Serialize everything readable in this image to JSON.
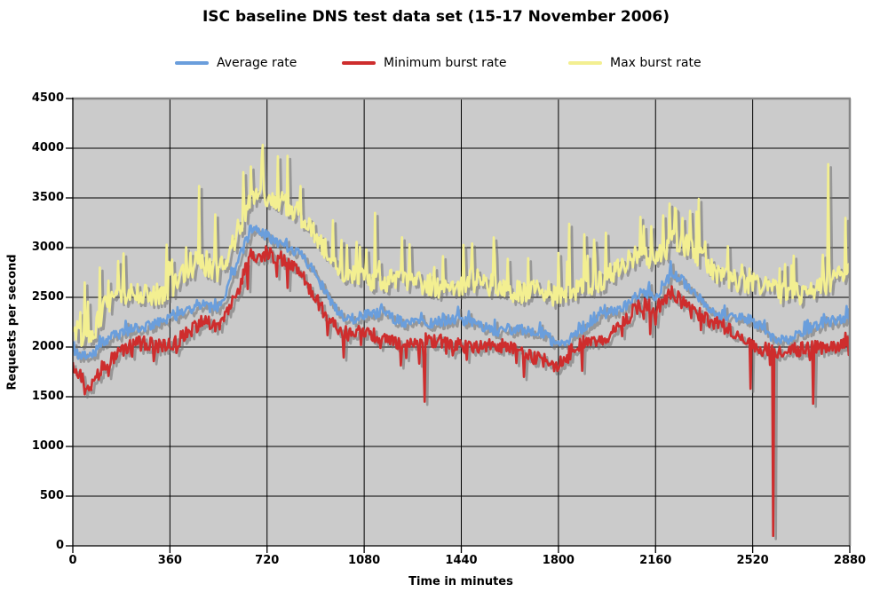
{
  "chart_data": {
    "type": "line",
    "title": "ISC baseline DNS test data set (15-17 November 2006)",
    "xlabel": "Time in minutes",
    "ylabel": "Requests per second",
    "xlim": [
      0,
      2880
    ],
    "ylim": [
      0,
      4500
    ],
    "x_ticks": [
      0,
      360,
      720,
      1080,
      1440,
      1800,
      2160,
      2520,
      2880
    ],
    "y_ticks": [
      0,
      500,
      1000,
      1500,
      2000,
      2500,
      3000,
      3500,
      4000,
      4500
    ],
    "grid": true,
    "legend_position": "top",
    "plot_bg_color": "#CBCBCB",
    "grid_color": "#000000",
    "axis_color": "#000000",
    "border_color": "#868686",
    "shadow_color": "rgba(110,110,110,0.55)",
    "sample_step_minutes": 60,
    "series": [
      {
        "name": "Average rate",
        "color": "#6A9EDC",
        "noise_amplitude": 55,
        "trend": [
          1950,
          1850,
          2050,
          2150,
          2200,
          2200,
          2250,
          2350,
          2450,
          2400,
          2750,
          3200,
          3150,
          3050,
          2950,
          2700,
          2450,
          2300,
          2300,
          2300,
          2250,
          2250,
          2250,
          2250,
          2250,
          2250,
          2200,
          2200,
          2150,
          2150,
          2050,
          2150,
          2250,
          2300,
          2400,
          2550,
          2500,
          2700,
          2600,
          2450,
          2350,
          2300,
          2250,
          2150,
          2100,
          2150,
          2200,
          2250,
          2300
        ]
      },
      {
        "name": "Minimum burst rate",
        "color": "#CE2D2D",
        "noise_amplitude": 75,
        "trend": [
          1750,
          1600,
          1850,
          1950,
          2000,
          2000,
          2050,
          2150,
          2250,
          2200,
          2550,
          2950,
          2950,
          2850,
          2750,
          2500,
          2250,
          2100,
          2100,
          2100,
          2050,
          2050,
          2050,
          2050,
          2050,
          2050,
          2000,
          2000,
          1950,
          1900,
          1800,
          1950,
          2050,
          2100,
          2250,
          2400,
          2350,
          2550,
          2450,
          2300,
          2200,
          2150,
          2050,
          2000,
          1950,
          1950,
          2000,
          2000,
          2100
        ],
        "anomaly_dips": [
          [
            1303,
            1450
          ],
          [
            2511,
            1580
          ],
          [
            2594,
            100
          ],
          [
            2742,
            1430
          ]
        ]
      },
      {
        "name": "Max burst rate",
        "color": "#F3EF91",
        "noise_amplitude": 115,
        "trend": [
          2200,
          2050,
          2400,
          2500,
          2550,
          2550,
          2600,
          2750,
          2850,
          2800,
          3100,
          3500,
          3500,
          3450,
          3350,
          3100,
          2850,
          2700,
          2700,
          2700,
          2650,
          2650,
          2650,
          2650,
          2650,
          2650,
          2600,
          2600,
          2550,
          2550,
          2450,
          2550,
          2650,
          2700,
          2800,
          2950,
          2900,
          3100,
          3000,
          2850,
          2750,
          2700,
          2650,
          2550,
          2500,
          2550,
          2600,
          2650,
          2750
        ],
        "notable_spikes": [
          [
            100,
            2800
          ],
          [
            468,
            3620
          ],
          [
            630,
            3760
          ],
          [
            758,
            3920
          ],
          [
            842,
            3620
          ],
          [
            1118,
            3350
          ],
          [
            1840,
            3240
          ],
          [
            2104,
            3310
          ],
          [
            2232,
            3400
          ],
          [
            2798,
            3840
          ],
          [
            2862,
            3300
          ]
        ]
      }
    ]
  }
}
